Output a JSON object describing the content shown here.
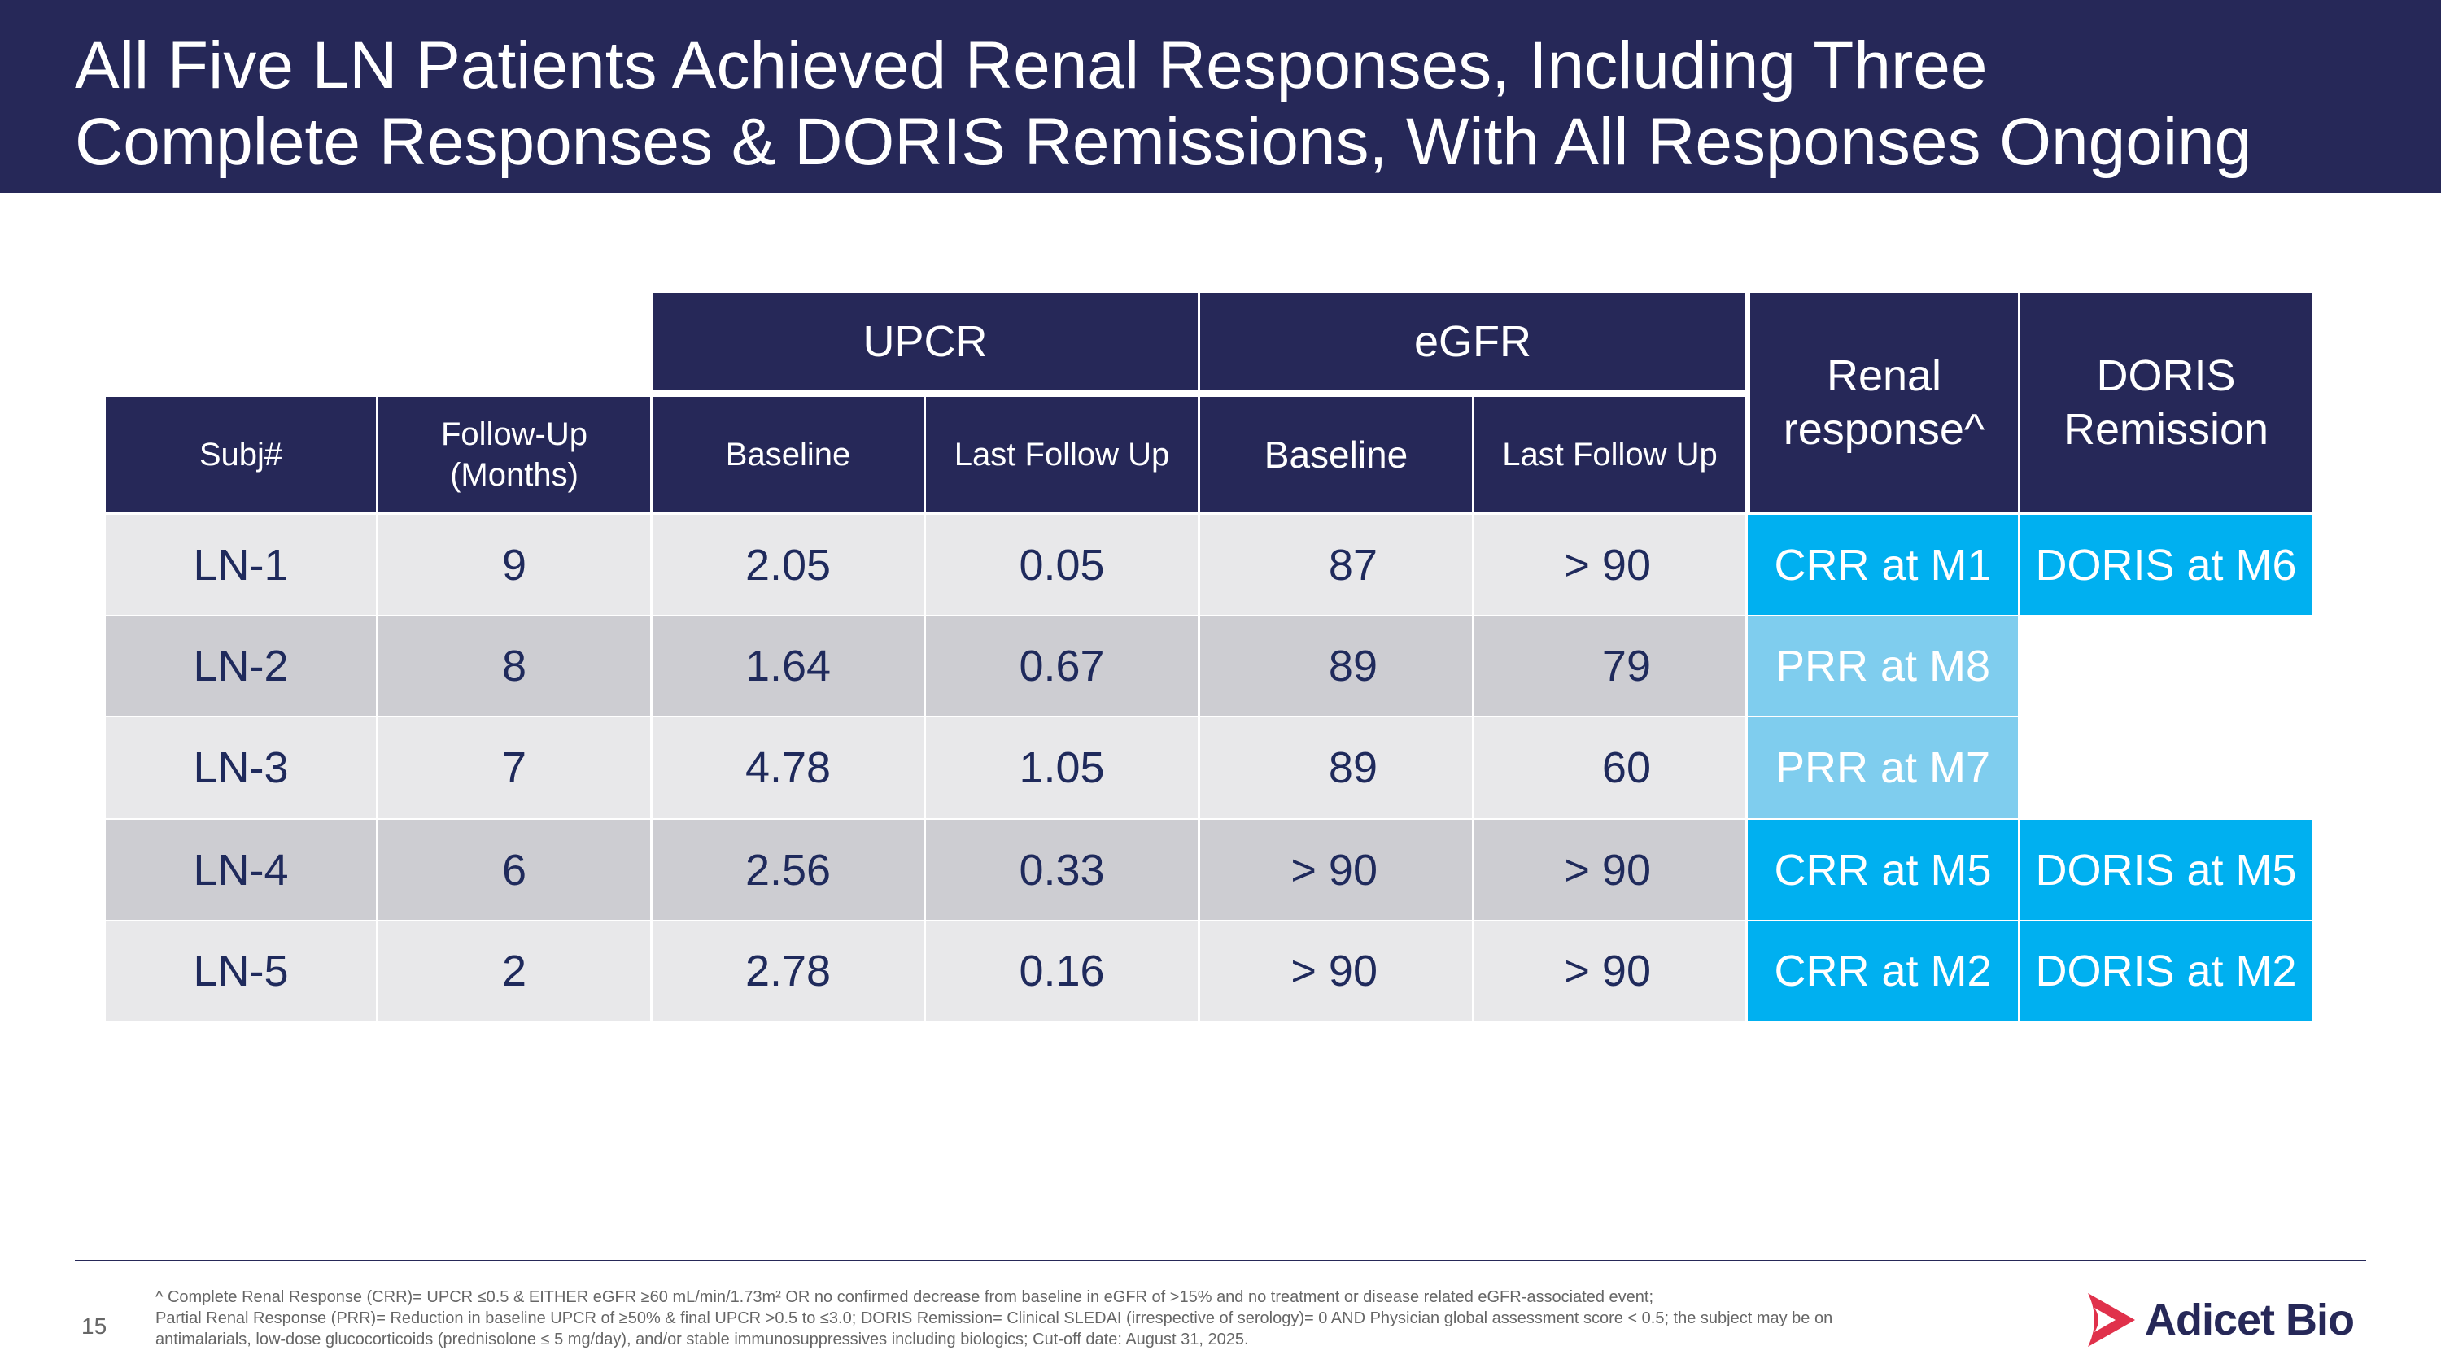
{
  "title_lines": [
    "All Five LN Patients Achieved Renal Responses, Including Three",
    "Complete Responses & DORIS Remissions, With All Responses Ongoing"
  ],
  "table": {
    "groups": {
      "upcr": "UPCR",
      "egfr": "eGFR",
      "renal": "Renal response^",
      "doris": "DORIS Remission"
    },
    "columns": [
      "Subj#",
      "Follow-Up (Months)",
      "Baseline",
      "Last Follow Up",
      "Baseline",
      "Last Follow Up"
    ],
    "rows": [
      [
        "LN-1",
        "9",
        "2.05",
        "0.05",
        "87",
        "> 90",
        "CRR at M1",
        "DORIS at M6"
      ],
      [
        "LN-2",
        "8",
        "1.64",
        "0.67",
        "89",
        "79",
        "PRR at M8",
        ""
      ],
      [
        "LN-3",
        "7",
        "4.78",
        "1.05",
        "89",
        "60",
        "PRR at M7",
        ""
      ],
      [
        "LN-4",
        "6",
        "2.56",
        "0.33",
        "> 90",
        "> 90",
        "CRR at M5",
        "DORIS at M5"
      ],
      [
        "LN-5",
        "2",
        "2.78",
        "0.16",
        "> 90",
        "> 90",
        "CRR at M2",
        "DORIS at M2"
      ]
    ]
  },
  "colors": {
    "navy": "#262858",
    "crr": "#00b0f0",
    "prr": "#7fcdee",
    "row_light": "#e8e8ea",
    "row_dark": "#cdcdd2"
  },
  "footer": {
    "page": "15",
    "notes": [
      "^ Complete Renal Response (CRR)= UPCR ≤0.5 & EITHER eGFR ≥60 mL/min/1.73m² OR no confirmed decrease from baseline in eGFR of >15% and no treatment or disease related eGFR-associated event;",
      "Partial Renal Response (PRR)= Reduction in baseline UPCR of ≥50% & final UPCR >0.5 to ≤3.0; DORIS Remission= Clinical SLEDAI (irrespective of serology)= 0 AND Physician global assessment score < 0.5;  the subject may be on",
      "antimalarials, low-dose glucocorticoids (prednisolone ≤ 5 mg/day), and/or stable immunosuppressives including biologics; Cut-off date: August 31, 2025."
    ],
    "logo": "Adicet Bio"
  }
}
